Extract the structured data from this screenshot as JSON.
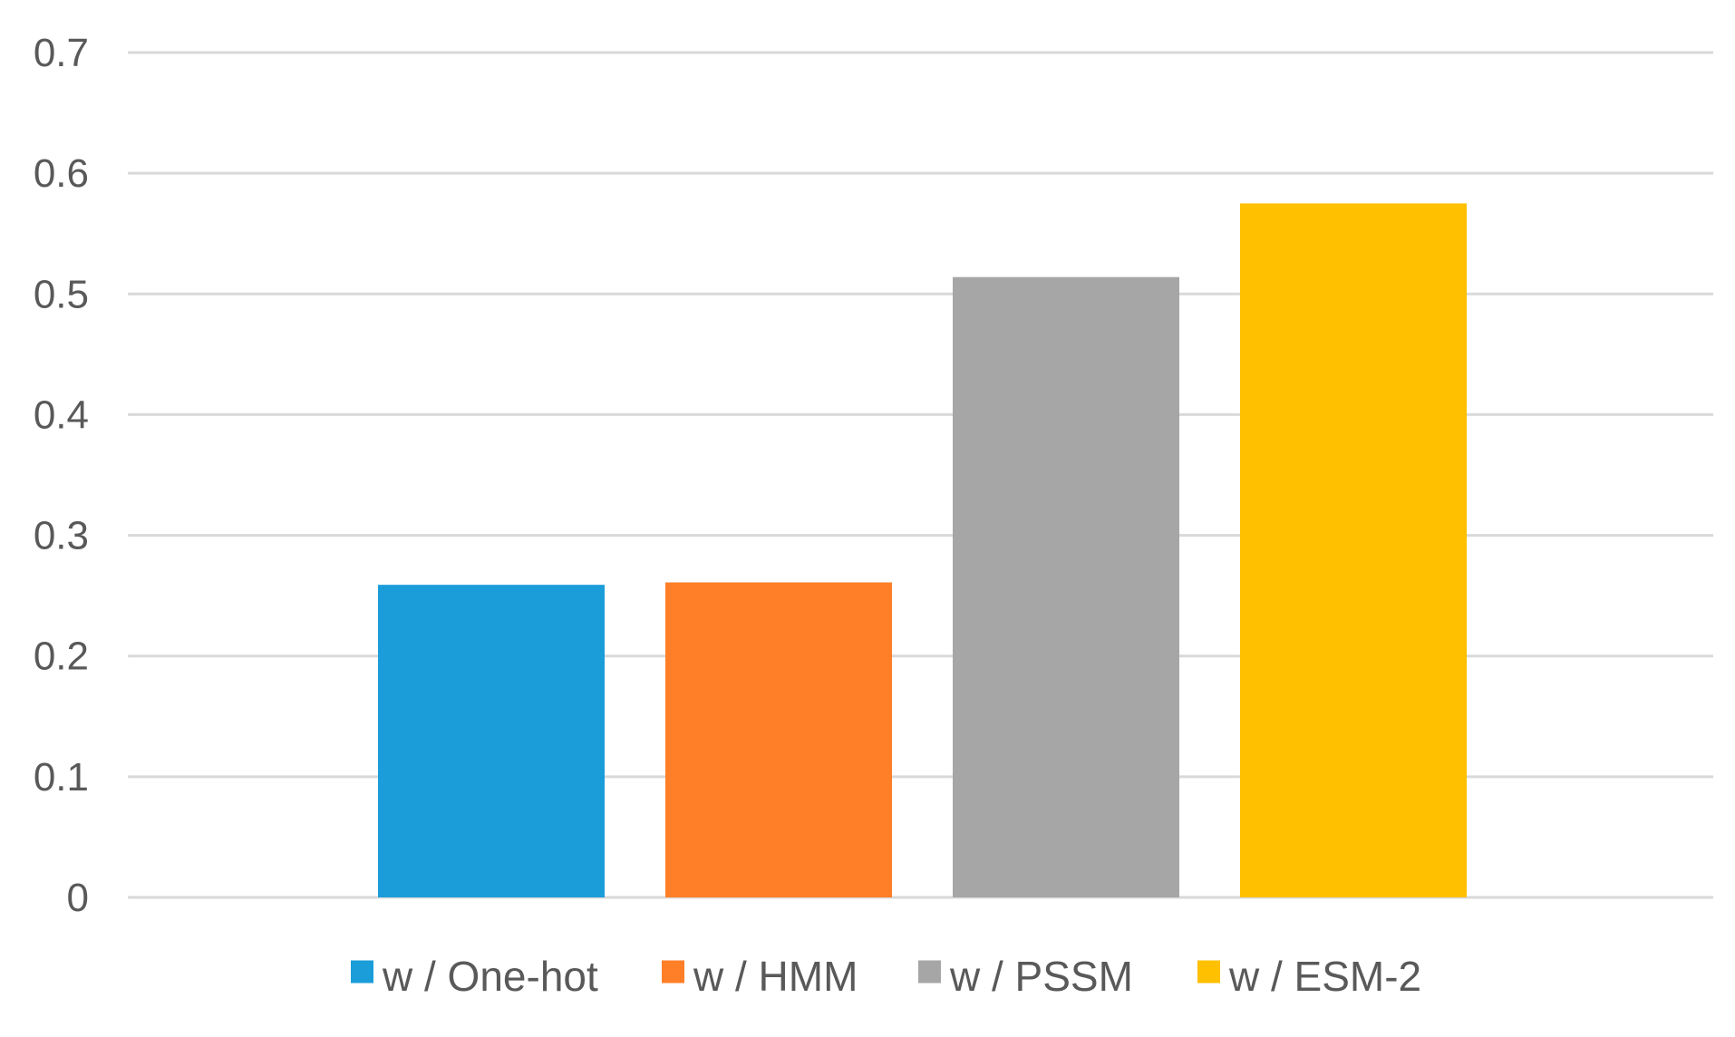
{
  "chart_data": {
    "type": "bar",
    "title": "",
    "xlabel": "",
    "ylabel": "",
    "ylim": [
      0,
      0.7
    ],
    "yticks": [
      0,
      0.1,
      0.2,
      0.3,
      0.4,
      0.5,
      0.6,
      0.7
    ],
    "ytick_labels": [
      "0",
      "0.1",
      "0.2",
      "0.3",
      "0.4",
      "0.5",
      "0.6",
      "0.7"
    ],
    "grid": true,
    "legend_position": "bottom",
    "series": [
      {
        "name": "w / One-hot",
        "values": [
          0.259
        ],
        "color": "#1b9dd9"
      },
      {
        "name": "w / HMM",
        "values": [
          0.261
        ],
        "color": "#fe7f27"
      },
      {
        "name": "w / PSSM",
        "values": [
          0.514
        ],
        "color": "#a6a6a6"
      },
      {
        "name": "w / ESM-2",
        "values": [
          0.575
        ],
        "color": "#ffc000"
      }
    ]
  }
}
